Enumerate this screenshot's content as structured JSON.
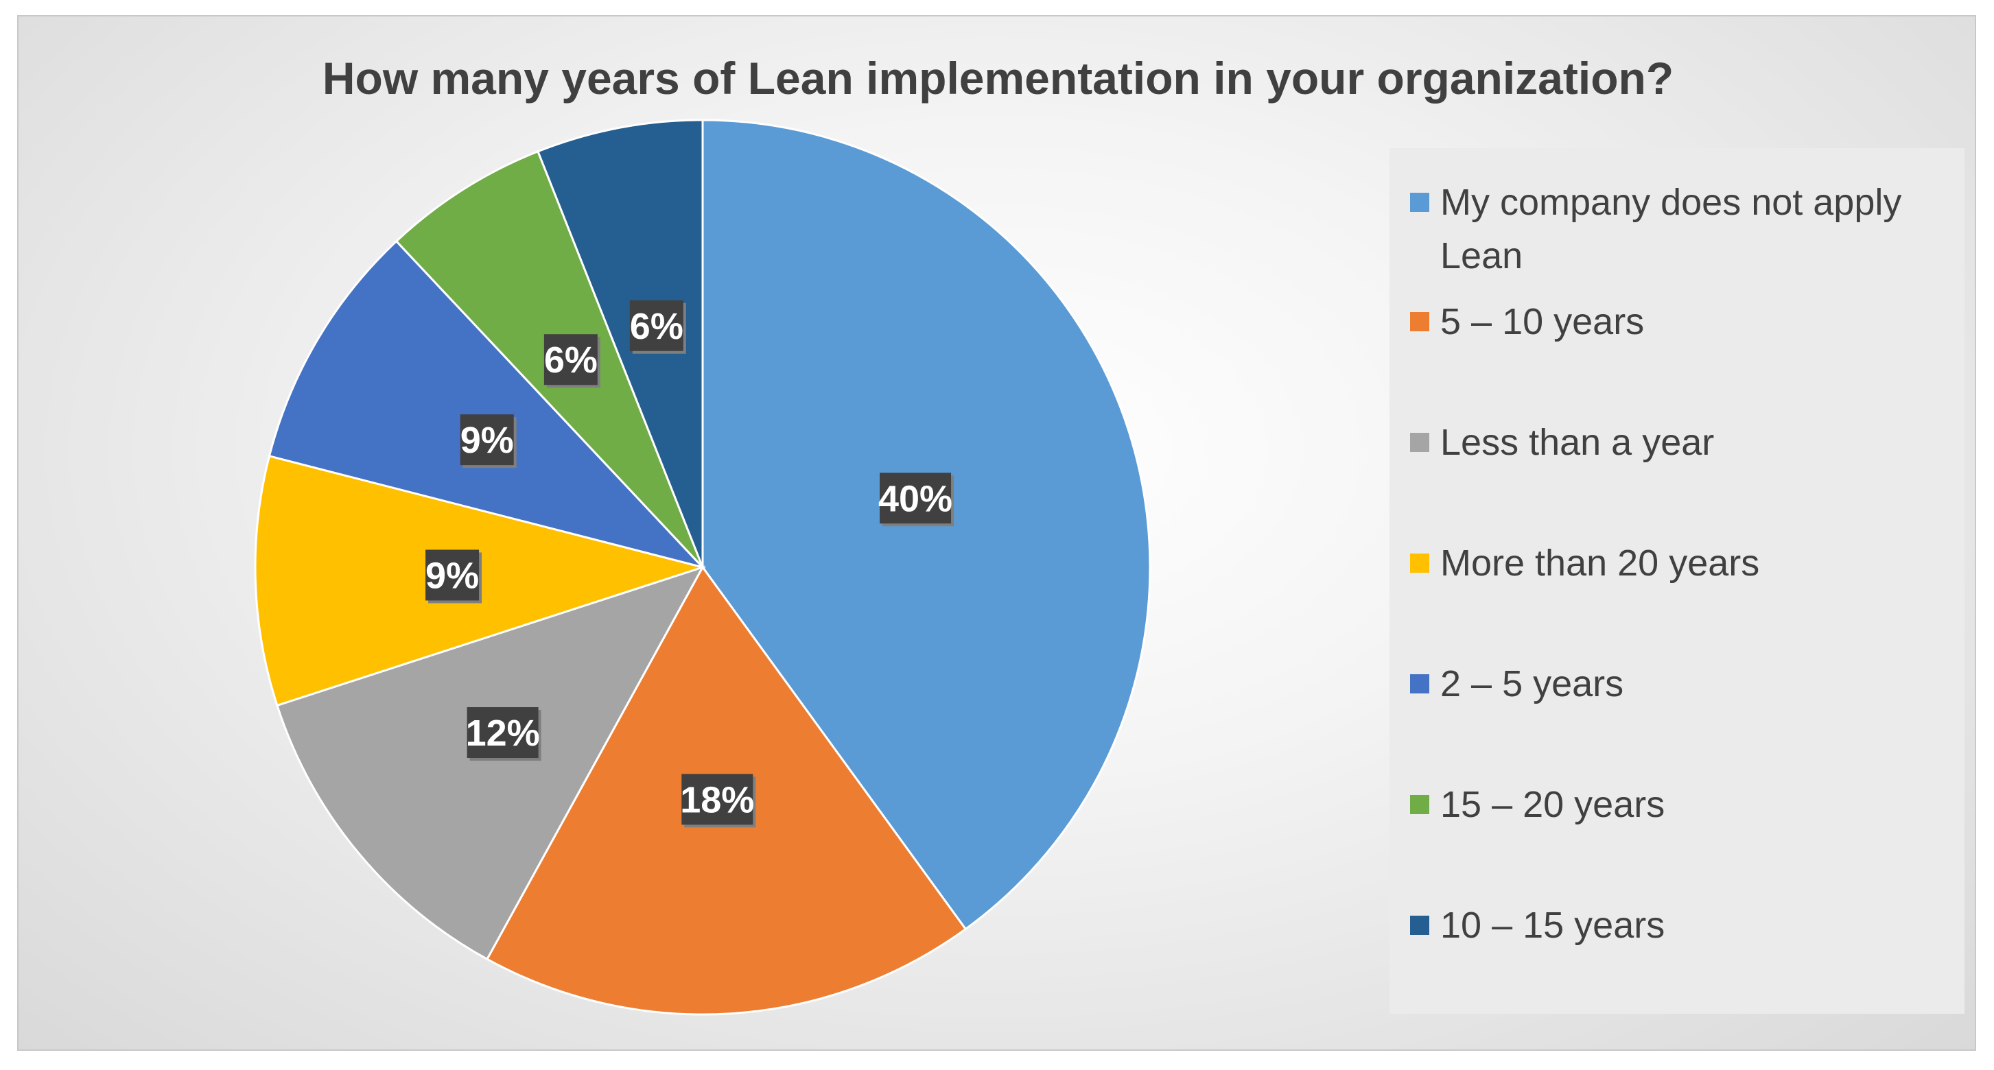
{
  "chart_data": {
    "type": "pie",
    "title": "How many years of Lean implementation in your organization?",
    "categories": [
      "My company does not apply Lean",
      "5 – 10 years",
      "Less than a year",
      "More than 20 years",
      "2 – 5 years",
      "15 – 20 years",
      "10 – 15 years"
    ],
    "values": [
      40,
      18,
      12,
      9,
      9,
      6,
      6
    ],
    "data_labels": [
      "40%",
      "18%",
      "12%",
      "9%",
      "9%",
      "6%",
      "6%"
    ],
    "colors": [
      "#5b9bd5",
      "#ed7d31",
      "#a5a5a5",
      "#ffc000",
      "#4472c4",
      "#70ad47",
      "#255e91"
    ],
    "legend_position": "right",
    "start_angle": "12 o'clock",
    "direction": "clockwise"
  }
}
